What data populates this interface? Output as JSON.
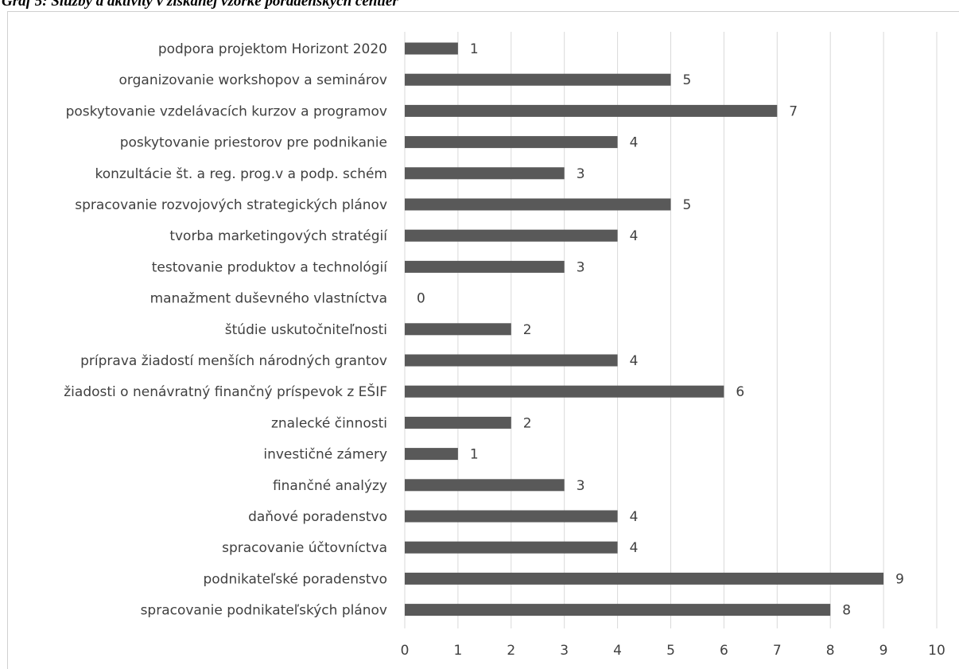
{
  "caption": "Graf 5: Služby a aktivity v získanej vzorke poradenských centier",
  "chart_data": {
    "type": "bar",
    "orientation": "horizontal",
    "categories": [
      "podpora projektom Horizont 2020",
      "organizovanie workshopov a seminárov",
      "poskytovanie vzdelávacích kurzov a programov",
      "poskytovanie priestorov pre podnikanie",
      "konzultácie št. a reg. prog.v a podp. schém",
      "spracovanie rozvojových strategických plánov",
      "tvorba marketingových stratégií",
      "testovanie produktov a technológií",
      "manažment duševného vlastníctva",
      "štúdie uskutočniteľnosti",
      "príprava žiadostí menších národných grantov",
      "žiadosti o nenávratný finančný príspevok z EŠIF",
      "znalecké činnosti",
      "investičné zámery",
      "finančné analýzy",
      "daňové poradenstvo",
      "spracovanie účtovníctva",
      "podnikateľské poradenstvo",
      "spracovanie podnikateľských plánov"
    ],
    "values": [
      1,
      5,
      7,
      4,
      3,
      5,
      4,
      3,
      0,
      2,
      4,
      6,
      2,
      1,
      3,
      4,
      4,
      9,
      8
    ],
    "xlim": [
      0,
      10
    ],
    "xticks": [
      0,
      1,
      2,
      3,
      4,
      5,
      6,
      7,
      8,
      9,
      10
    ],
    "grid": "vertical",
    "data_labels": true,
    "bar_color": "#595959",
    "grid_color": "#d9d9d9",
    "text_color": "#404040"
  }
}
